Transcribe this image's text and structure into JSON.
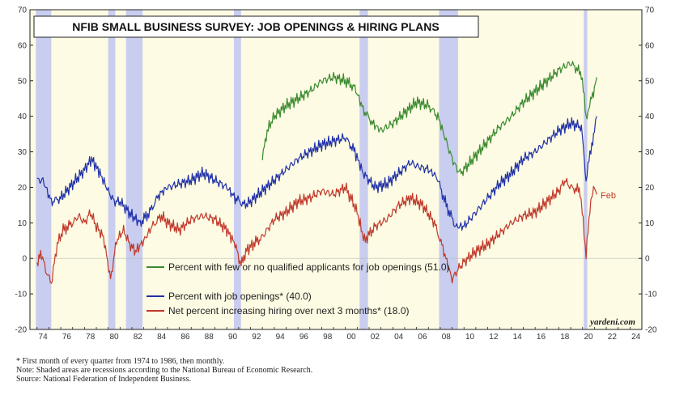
{
  "chart_data": {
    "type": "line",
    "title": "NFIB SMALL BUSINESS SURVEY: JOB OPENINGS & HIRING PLANS",
    "credit": "yardeni.com",
    "end_label": "Feb",
    "xlim": [
      1973.4,
      2025.0
    ],
    "ylim": [
      -20,
      70
    ],
    "yticks": [
      -20,
      -10,
      0,
      10,
      20,
      30,
      40,
      50,
      60,
      70
    ],
    "ytick_labels": [
      "-20",
      "-10",
      "0",
      "10",
      "20",
      "30",
      "40",
      "50",
      "60",
      "70"
    ],
    "xticks": [
      1974,
      1976,
      1978,
      1980,
      1982,
      1984,
      1986,
      1988,
      1990,
      1992,
      1994,
      1996,
      1998,
      2000,
      2002,
      2004,
      2006,
      2008,
      2010,
      2012,
      2014,
      2016,
      2018,
      2020,
      2022,
      2024
    ],
    "xtick_labels": [
      "74",
      "76",
      "78",
      "80",
      "82",
      "84",
      "86",
      "88",
      "90",
      "92",
      "94",
      "96",
      "98",
      "00",
      "02",
      "04",
      "06",
      "08",
      "10",
      "12",
      "14",
      "16",
      "18",
      "20",
      "22",
      "24"
    ],
    "recessions": [
      [
        1973.9,
        1975.2
      ],
      [
        1980.0,
        1980.6
      ],
      [
        1981.5,
        1982.9
      ],
      [
        1990.6,
        1991.2
      ],
      [
        2001.2,
        2001.9
      ],
      [
        2007.9,
        2009.5
      ],
      [
        2020.1,
        2020.4
      ]
    ],
    "legend": [
      "Percent with few or no qualified applicants for job openings (51.0)",
      "Percent with job openings* (40.0)",
      "Net percent increasing hiring over next 3 months* (18.0)"
    ],
    "series": [
      {
        "name": "Percent with few or no qualified applicants for job openings (51.0)",
        "color": "#3a8a2e",
        "points": [
          [
            1993.0,
            28
          ],
          [
            1993.4,
            36
          ],
          [
            1994.0,
            40
          ],
          [
            1995.0,
            43
          ],
          [
            1996.0,
            45
          ],
          [
            1997.0,
            47
          ],
          [
            1998.0,
            50
          ],
          [
            1999.0,
            51
          ],
          [
            2000.0,
            50
          ],
          [
            2000.8,
            48
          ],
          [
            2001.5,
            42
          ],
          [
            2002.3,
            38
          ],
          [
            2003.0,
            36
          ],
          [
            2004.0,
            38
          ],
          [
            2005.0,
            41
          ],
          [
            2006.0,
            44
          ],
          [
            2007.0,
            43
          ],
          [
            2007.8,
            40
          ],
          [
            2008.5,
            33
          ],
          [
            2009.0,
            28
          ],
          [
            2009.6,
            24
          ],
          [
            2010.0,
            25
          ],
          [
            2011.0,
            29
          ],
          [
            2012.0,
            33
          ],
          [
            2013.0,
            37
          ],
          [
            2014.0,
            40
          ],
          [
            2015.0,
            44
          ],
          [
            2016.0,
            47
          ],
          [
            2017.0,
            50
          ],
          [
            2018.0,
            53
          ],
          [
            2019.0,
            55
          ],
          [
            2019.9,
            52
          ],
          [
            2020.3,
            40
          ],
          [
            2020.6,
            43
          ],
          [
            2021.0,
            48
          ],
          [
            2021.2,
            51
          ]
        ]
      },
      {
        "name": "Percent with job openings* (40.0)",
        "color": "#2030a8",
        "points": [
          [
            1974.0,
            22
          ],
          [
            1974.5,
            22
          ],
          [
            1975.2,
            16
          ],
          [
            1976.0,
            17
          ],
          [
            1977.0,
            21
          ],
          [
            1978.0,
            25
          ],
          [
            1978.6,
            28
          ],
          [
            1979.3,
            24
          ],
          [
            1980.0,
            19
          ],
          [
            1980.5,
            16
          ],
          [
            1981.0,
            16
          ],
          [
            1981.5,
            14
          ],
          [
            1982.0,
            12
          ],
          [
            1982.7,
            10
          ],
          [
            1983.5,
            13
          ],
          [
            1984.3,
            18
          ],
          [
            1985.0,
            20
          ],
          [
            1986.0,
            21
          ],
          [
            1987.0,
            22
          ],
          [
            1988.0,
            24
          ],
          [
            1989.0,
            22
          ],
          [
            1990.0,
            20
          ],
          [
            1990.7,
            17
          ],
          [
            1991.5,
            15
          ],
          [
            1992.0,
            16
          ],
          [
            1993.0,
            19
          ],
          [
            1994.0,
            22
          ],
          [
            1995.0,
            25
          ],
          [
            1996.0,
            28
          ],
          [
            1997.0,
            30
          ],
          [
            1998.0,
            32
          ],
          [
            1999.0,
            33
          ],
          [
            2000.0,
            34
          ],
          [
            2000.8,
            30
          ],
          [
            2001.5,
            24
          ],
          [
            2002.5,
            20
          ],
          [
            2003.5,
            21
          ],
          [
            2004.5,
            24
          ],
          [
            2005.5,
            27
          ],
          [
            2006.0,
            26
          ],
          [
            2007.0,
            25
          ],
          [
            2007.7,
            23
          ],
          [
            2008.5,
            15
          ],
          [
            2009.3,
            9
          ],
          [
            2010.0,
            9
          ],
          [
            2011.0,
            13
          ],
          [
            2012.0,
            17
          ],
          [
            2013.0,
            21
          ],
          [
            2014.0,
            24
          ],
          [
            2015.0,
            28
          ],
          [
            2016.0,
            30
          ],
          [
            2017.0,
            33
          ],
          [
            2018.0,
            36
          ],
          [
            2019.0,
            38
          ],
          [
            2019.9,
            37
          ],
          [
            2020.3,
            22
          ],
          [
            2020.7,
            31
          ],
          [
            2021.0,
            36
          ],
          [
            2021.2,
            40
          ]
        ]
      },
      {
        "name": "Net percent increasing hiring over next 3 months* (18.0)",
        "color": "#c0392b",
        "points": [
          [
            1974.0,
            -3
          ],
          [
            1974.3,
            2
          ],
          [
            1974.8,
            -4
          ],
          [
            1975.2,
            -7
          ],
          [
            1975.7,
            4
          ],
          [
            1976.2,
            8
          ],
          [
            1977.0,
            10
          ],
          [
            1977.5,
            12
          ],
          [
            1978.0,
            10
          ],
          [
            1978.5,
            13
          ],
          [
            1979.0,
            9
          ],
          [
            1979.6,
            6
          ],
          [
            1980.2,
            -6
          ],
          [
            1980.7,
            5
          ],
          [
            1981.3,
            8
          ],
          [
            1981.8,
            4
          ],
          [
            1982.3,
            2
          ],
          [
            1983.0,
            5
          ],
          [
            1983.7,
            9
          ],
          [
            1984.5,
            12
          ],
          [
            1985.0,
            10
          ],
          [
            1986.0,
            8
          ],
          [
            1987.0,
            11
          ],
          [
            1988.0,
            12
          ],
          [
            1989.0,
            11
          ],
          [
            1990.0,
            8
          ],
          [
            1990.7,
            4
          ],
          [
            1991.2,
            -2
          ],
          [
            1991.6,
            2
          ],
          [
            1992.2,
            4
          ],
          [
            1993.0,
            6
          ],
          [
            1994.0,
            11
          ],
          [
            1995.0,
            13
          ],
          [
            1996.0,
            16
          ],
          [
            1997.0,
            17
          ],
          [
            1998.0,
            19
          ],
          [
            1999.0,
            18
          ],
          [
            2000.0,
            20
          ],
          [
            2000.9,
            14
          ],
          [
            2001.6,
            5
          ],
          [
            2002.5,
            9
          ],
          [
            2003.5,
            11
          ],
          [
            2004.5,
            15
          ],
          [
            2005.5,
            17
          ],
          [
            2006.5,
            15
          ],
          [
            2007.5,
            10
          ],
          [
            2008.3,
            2
          ],
          [
            2009.0,
            -6
          ],
          [
            2009.5,
            -3
          ],
          [
            2010.0,
            -1
          ],
          [
            2011.0,
            2
          ],
          [
            2012.0,
            4
          ],
          [
            2013.0,
            7
          ],
          [
            2014.0,
            10
          ],
          [
            2015.0,
            12
          ],
          [
            2016.0,
            13
          ],
          [
            2017.0,
            16
          ],
          [
            2018.0,
            19
          ],
          [
            2018.5,
            22
          ],
          [
            2019.0,
            20
          ],
          [
            2019.8,
            19
          ],
          [
            2020.3,
            1
          ],
          [
            2020.7,
            17
          ],
          [
            2021.0,
            20
          ],
          [
            2021.2,
            18
          ]
        ]
      }
    ]
  },
  "footnotes": [
    "*   First month of every quarter from 1974 to 1986, then monthly.",
    "Note: Shaded areas are recessions according to the National Bureau of Economic Research.",
    "Source: National Federation of Independent Business."
  ],
  "colors": {
    "plot_background": "#fdfbe3",
    "recession": "#c9cdef",
    "green": "#3a8a2e",
    "blue": "#2030a8",
    "red": "#c0392b"
  }
}
